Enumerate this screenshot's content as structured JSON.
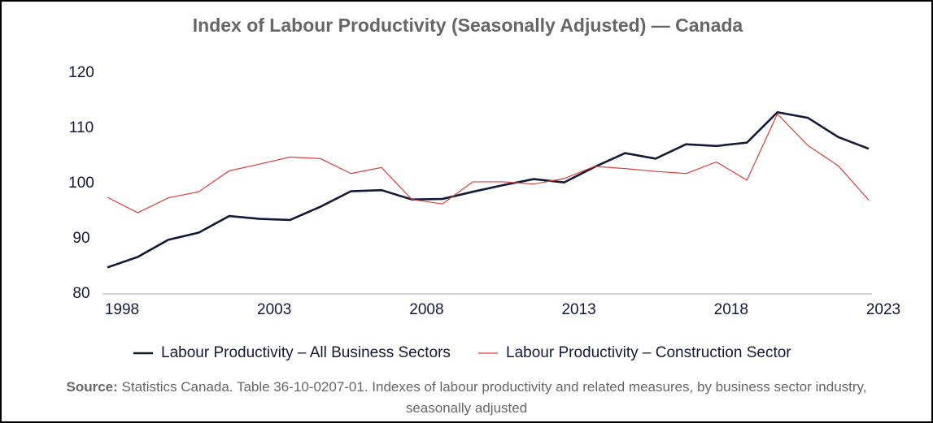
{
  "chart_data": {
    "type": "line",
    "title": "Index of Labour Productivity (Seasonally Adjusted) — Canada",
    "categories": [
      "1998",
      null,
      null,
      null,
      null,
      "2003",
      null,
      null,
      null,
      null,
      "2008",
      null,
      null,
      null,
      null,
      "2013",
      null,
      null,
      null,
      null,
      "2018",
      null,
      null,
      null,
      null,
      "2023"
    ],
    "series": [
      {
        "name": "Labour Productivity – All Business Sectors",
        "color": "#14193a",
        "values": [
          84.8,
          86.7,
          89.8,
          91.1,
          94.1,
          93.6,
          93.4,
          95.8,
          98.6,
          98.8,
          97.1,
          97.2,
          98.5,
          99.7,
          100.8,
          100.2,
          103.0,
          105.5,
          104.5,
          107.1,
          106.8,
          107.4,
          112.9,
          111.9,
          108.4,
          106.3
        ]
      },
      {
        "name": "Labour Productivity – Construction Sector",
        "color": "#d9403a",
        "values": [
          97.5,
          94.7,
          97.4,
          98.5,
          102.3,
          103.5,
          104.8,
          104.5,
          101.8,
          102.9,
          97.1,
          96.3,
          100.3,
          100.3,
          99.9,
          100.9,
          103.1,
          102.7,
          102.2,
          101.8,
          103.9,
          100.6,
          112.6,
          106.9,
          103.2,
          97.0
        ]
      }
    ],
    "ylim": [
      80,
      120
    ],
    "yticks": [
      80,
      90,
      100,
      110,
      120
    ],
    "grid": false,
    "legend": "bottom",
    "source_label": "Source:",
    "source_text": "Statistics Canada. Table 36-10-0207-01. Indexes of labour productivity and related measures, by business sector industry, seasonally adjusted"
  }
}
